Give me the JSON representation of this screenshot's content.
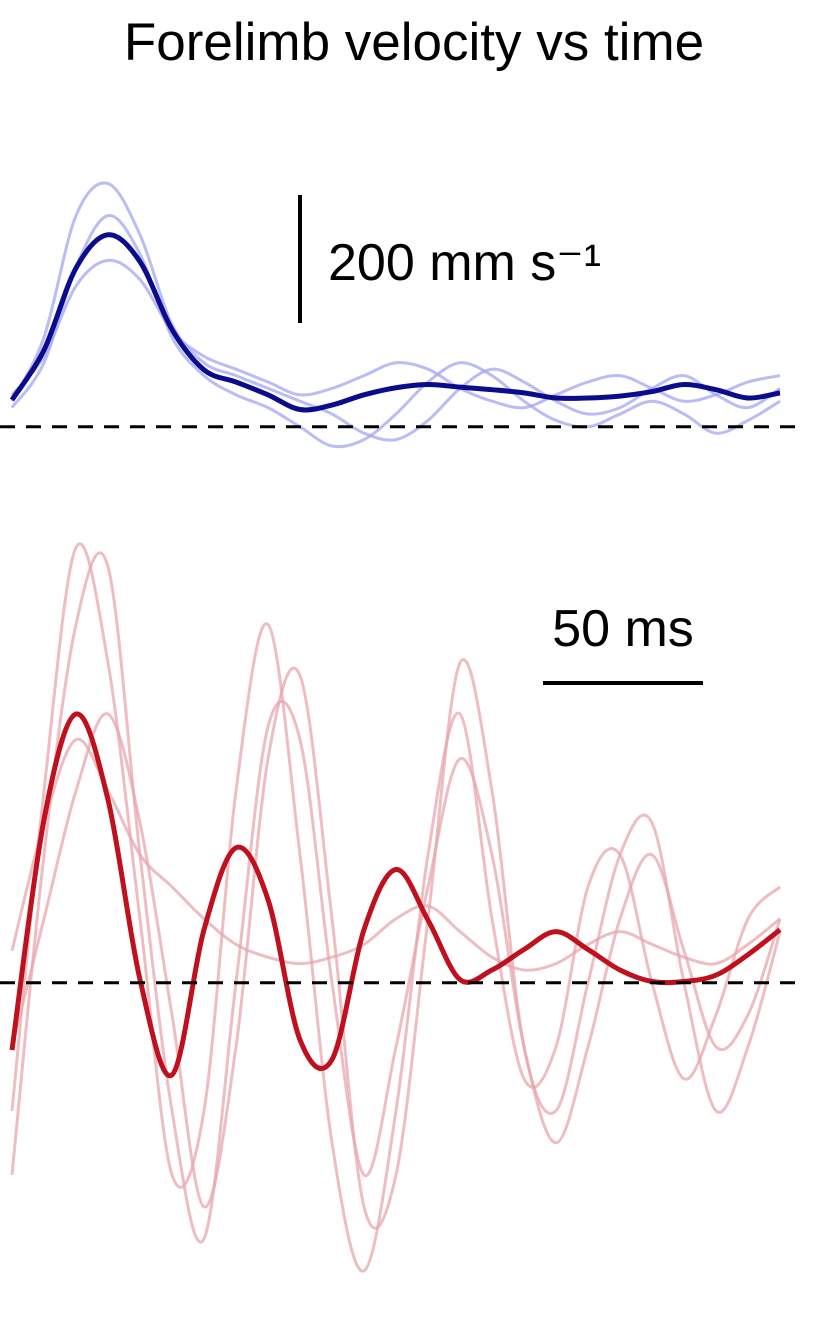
{
  "chart_data": [
    {
      "type": "line",
      "title": "Forelimb velocity vs time",
      "x": [
        0,
        10,
        20,
        30,
        40,
        50,
        60,
        70,
        80,
        90,
        100,
        110,
        120,
        130,
        140,
        150,
        160,
        170,
        180,
        190,
        200,
        210,
        220,
        230,
        240
      ],
      "xlim": [
        0,
        247
      ],
      "ylim": [
        -80,
        420
      ],
      "zero_line": 0,
      "y_scale_bar": {
        "value": 200,
        "label": "200 mm s⁻¹"
      },
      "series": [
        {
          "color": "#a3a6f2",
          "values": [
            40,
            140,
            330,
            380,
            300,
            160,
            100,
            80,
            60,
            40,
            20,
            -10,
            -20,
            10,
            60,
            90,
            70,
            40,
            20,
            30,
            60,
            80,
            50,
            30,
            60
          ]
        },
        {
          "color": "#a3a6f2",
          "values": [
            50,
            110,
            220,
            260,
            230,
            150,
            110,
            90,
            70,
            50,
            60,
            80,
            100,
            90,
            60,
            40,
            30,
            50,
            70,
            80,
            60,
            40,
            50,
            70,
            80
          ]
        },
        {
          "color": "#a3a6f2",
          "values": [
            30,
            100,
            250,
            330,
            270,
            140,
            80,
            50,
            30,
            0,
            -30,
            -20,
            20,
            70,
            100,
            80,
            40,
            10,
            0,
            20,
            40,
            20,
            -10,
            10,
            40
          ]
        },
        {
          "color": "#0b0b8e",
          "values": [
            42,
            120,
            248,
            300,
            258,
            152,
            89,
            70,
            50,
            27,
            34,
            50,
            61,
            66,
            62,
            58,
            53,
            45,
            45,
            48,
            55,
            66,
            58,
            45,
            53
          ]
        }
      ]
    },
    {
      "type": "line",
      "x": [
        0,
        10,
        20,
        30,
        40,
        50,
        60,
        70,
        80,
        90,
        100,
        110,
        120,
        130,
        140,
        150,
        160,
        170,
        180,
        190,
        200,
        210,
        220,
        230,
        240
      ],
      "xlim": [
        0,
        247
      ],
      "ylim": [
        -530,
        720
      ],
      "zero_line": 0,
      "x_scale_bar": {
        "value": 50,
        "label": "50 ms"
      },
      "series": [
        {
          "color": "#e8a7ae",
          "values": [
            -200,
            300,
            680,
            500,
            100,
            -300,
            -200,
            300,
            560,
            200,
            -250,
            -450,
            -200,
            200,
            420,
            100,
            -150,
            -100,
            150,
            200,
            0,
            -150,
            -50,
            100,
            150
          ]
        },
        {
          "color": "#e8a7ae",
          "values": [
            -300,
            200,
            560,
            650,
            200,
            -200,
            -400,
            0,
            400,
            380,
            0,
            -300,
            -100,
            150,
            350,
            200,
            -100,
            -250,
            -100,
            100,
            200,
            50,
            -100,
            -50,
            100
          ]
        },
        {
          "color": "#e8a7ae",
          "values": [
            50,
            250,
            380,
            300,
            200,
            150,
            100,
            60,
            40,
            30,
            40,
            60,
            100,
            120,
            80,
            40,
            20,
            30,
            60,
            80,
            60,
            40,
            30,
            60,
            100
          ]
        },
        {
          "color": "#e8a7ae",
          "values": [
            -100,
            100,
            300,
            420,
            250,
            -50,
            -350,
            -100,
            350,
            480,
            100,
            -350,
            -300,
            100,
            500,
            300,
            -100,
            -200,
            0,
            200,
            250,
            0,
            -200,
            -100,
            80
          ]
        },
        {
          "color": "#c0101e",
          "values": [
            -105,
            255,
            420,
            286,
            5,
            -144,
            83,
            211,
            130,
            -89,
            -120,
            83,
            177,
            98,
            5,
            20,
            52,
            80,
            52,
            20,
            2,
            2,
            12,
            44,
            83
          ]
        }
      ]
    }
  ]
}
